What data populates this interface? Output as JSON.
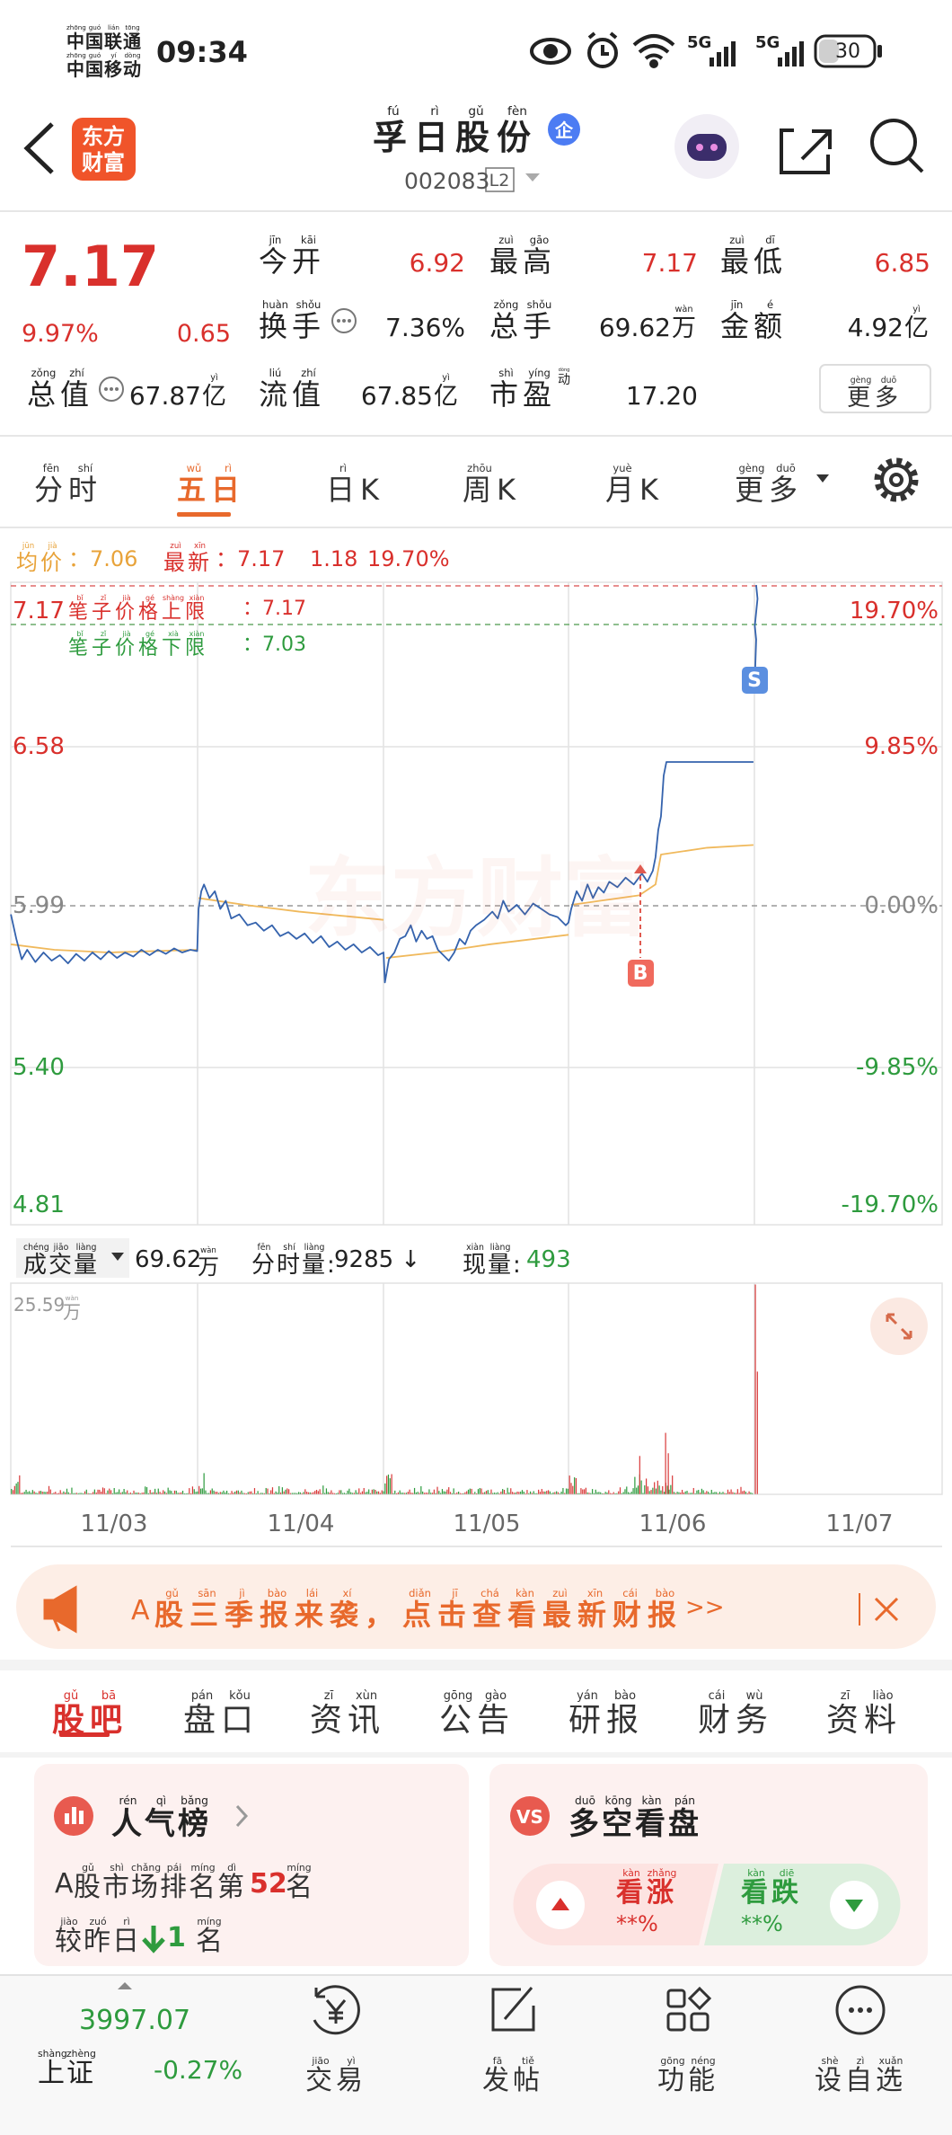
{
  "status_bar": {
    "carrier_top": {
      "text": "中国联通",
      "pinyin": [
        "zhōng",
        "guó",
        "lián",
        "tōng"
      ]
    },
    "carrier_bottom": {
      "text": "中国移动",
      "pinyin": [
        "zhōng",
        "guó",
        "yí",
        "dòng"
      ]
    },
    "time": "09:34",
    "signal_1": "5G",
    "signal_2": "5G",
    "battery": "30"
  },
  "header": {
    "logo_top": "东方",
    "logo_bottom": "财富",
    "title": {
      "text": "孚日股份",
      "pinyin": [
        "fú",
        "rì",
        "gǔ",
        "fèn"
      ]
    },
    "badge": "企",
    "code": "002083",
    "level": "L2"
  },
  "quote": {
    "price": "7.17",
    "change_percent": "9.97%",
    "change": "0.65",
    "fields": [
      {
        "label": {
          "text": "今开",
          "pinyin": [
            "jīn",
            "kāi"
          ]
        },
        "value": "6.92"
      },
      {
        "label": {
          "text": "最高",
          "pinyin": [
            "zuì",
            "gāo"
          ]
        },
        "value": "7.17"
      },
      {
        "label": {
          "text": "最低",
          "pinyin": [
            "zuì",
            "dī"
          ]
        },
        "value": "6.85"
      },
      {
        "label": {
          "text": "换手",
          "pinyin": [
            "huàn",
            "shǒu"
          ]
        },
        "value": "7.36%"
      },
      {
        "label": {
          "text": "总手",
          "pinyin": [
            "zǒng",
            "shǒu"
          ]
        },
        "value": "69.62",
        "unit": {
          "text": "万",
          "pinyin": [
            "wàn"
          ]
        }
      },
      {
        "label": {
          "text": "金额",
          "pinyin": [
            "jīn",
            "é"
          ]
        },
        "value": "4.92",
        "unit": {
          "text": "亿",
          "pinyin": [
            "yì"
          ]
        }
      },
      {
        "label": {
          "text": "总值",
          "pinyin": [
            "zǒng",
            "zhí"
          ]
        },
        "value": "67.87",
        "unit": {
          "text": "亿",
          "pinyin": [
            "yì"
          ]
        }
      },
      {
        "label": {
          "text": "流值",
          "pinyin": [
            "liú",
            "zhí"
          ]
        },
        "value": "67.85",
        "unit": {
          "text": "亿",
          "pinyin": [
            "yì"
          ]
        }
      },
      {
        "label": {
          "text": "市盈",
          "pinyin": [
            "shì",
            "yíng"
          ]
        },
        "tag": {
          "text": "动",
          "pinyin": [
            "dòng"
          ]
        },
        "value": "17.20"
      }
    ],
    "more": {
      "text": "更多",
      "pinyin": [
        "gèng",
        "duō"
      ]
    }
  },
  "chart_tabs": [
    {
      "text": "分时",
      "pinyin": [
        "fēn",
        "shí"
      ]
    },
    {
      "text": "五日",
      "pinyin": [
        "wǔ",
        "rì"
      ]
    },
    {
      "text": "日K",
      "pinyin": [
        "rì"
      ]
    },
    {
      "text": "周K",
      "pinyin": [
        "zhōu"
      ]
    },
    {
      "text": "月K",
      "pinyin": [
        "yuè"
      ]
    },
    {
      "text": "更多",
      "pinyin": [
        "gèng",
        "duō"
      ]
    }
  ],
  "active_chart_tab": 1,
  "legend": {
    "avg_label": {
      "text": "均价",
      "pinyin": [
        "jūn",
        "jià"
      ]
    },
    "avg_value": "：7.06",
    "latest_label": {
      "text": "最新",
      "pinyin": [
        "zuì",
        "xīn"
      ]
    },
    "latest_value": "：7.17",
    "latest_change": "1.18",
    "latest_percent": "19.70%"
  },
  "price_chart": {
    "left_labels": [
      "7.17",
      "6.58",
      "5.99",
      "5.40",
      "4.81"
    ],
    "right_labels": [
      "19.70%",
      "9.85%",
      "0.00%",
      "-9.85%",
      "-19.70%"
    ],
    "upper_limit": {
      "label": {
        "text": "笔子价格上限",
        "pinyin": [
          "bǐ",
          "zǐ",
          "jià",
          "gé",
          "shàng",
          "xiàn"
        ]
      },
      "value": "：7.17"
    },
    "lower_limit": {
      "label": {
        "text": "笔子价格下限",
        "pinyin": [
          "bǐ",
          "zǐ",
          "jià",
          "gé",
          "xià",
          "xiàn"
        ]
      },
      "value": "：7.03"
    },
    "watermark": "东方财富",
    "buy_marker": "B",
    "sell_marker": "S"
  },
  "volume": {
    "label": {
      "text": "成交量",
      "pinyin": [
        "chéng",
        "jiāo",
        "liàng"
      ]
    },
    "total": "69.62",
    "total_unit": {
      "text": "万",
      "pinyin": [
        "wàn"
      ]
    },
    "tick_label": {
      "text": "分时量:",
      "pinyin": [
        "fēn",
        "shí",
        "liàng"
      ]
    },
    "tick_value": "9285 ↓",
    "current_label": {
      "text": "现量:",
      "pinyin": [
        "xiàn",
        "liàng"
      ]
    },
    "current_value": "493",
    "scale_max": "25.59",
    "scale_unit": {
      "text": "万",
      "pinyin": [
        "wàn"
      ]
    }
  },
  "dates": [
    "11/03",
    "11/04",
    "11/05",
    "11/06",
    "11/07"
  ],
  "banner": {
    "prefix": "A",
    "part1": {
      "text": "股三季报来袭，",
      "pinyin": [
        "gǔ",
        "sān",
        "jì",
        "bào",
        "lái",
        "xí"
      ]
    },
    "part2": {
      "text": "点击查看最新财报",
      "pinyin": [
        "diǎn",
        "jī",
        "chá",
        "kàn",
        "zuì",
        "xīn",
        "cái",
        "bào"
      ]
    },
    "suffix": ">>"
  },
  "info_tabs": [
    {
      "text": "股吧",
      "pinyin": [
        "gǔ",
        "bā"
      ]
    },
    {
      "text": "盘口",
      "pinyin": [
        "pán",
        "kǒu"
      ]
    },
    {
      "text": "资讯",
      "pinyin": [
        "zī",
        "xùn"
      ]
    },
    {
      "text": "公告",
      "pinyin": [
        "gōng",
        "gào"
      ]
    },
    {
      "text": "研报",
      "pinyin": [
        "yán",
        "bào"
      ]
    },
    {
      "text": "财务",
      "pinyin": [
        "cái",
        "wù"
      ]
    },
    {
      "text": "资料",
      "pinyin": [
        "zī",
        "liào"
      ]
    }
  ],
  "active_info_tab": 0,
  "popularity_card": {
    "title": {
      "text": "人气榜",
      "pinyin": [
        "rén",
        "qì",
        "bǎng"
      ]
    },
    "rank_prefix": "A",
    "rank_label": {
      "text": "股市场排名第",
      "pinyin": [
        "gǔ",
        "shì",
        "chǎng",
        "pái",
        "míng",
        "dì"
      ]
    },
    "rank": "52",
    "rank_unit": {
      "text": "名",
      "pinyin": [
        "míng"
      ]
    },
    "change_label": {
      "text": "较昨日",
      "pinyin": [
        "jiào",
        "zuó",
        "rì"
      ]
    },
    "change": "1",
    "change_unit": {
      "text": "名",
      "pinyin": [
        "míng"
      ]
    }
  },
  "sentiment_card": {
    "icon": "VS",
    "title": {
      "text": "多空看盘",
      "pinyin": [
        "duō",
        "kōng",
        "kàn",
        "pán"
      ]
    },
    "bull": {
      "text": "看涨",
      "pinyin": [
        "kàn",
        "zhǎng"
      ]
    },
    "bull_value": "**%",
    "bear": {
      "text": "看跌",
      "pinyin": [
        "kàn",
        "diē"
      ]
    },
    "bear_value": "**%"
  },
  "bottom_nav": {
    "index_value": "3997.07",
    "index_name": {
      "text": "上证",
      "pinyin": [
        "shàng",
        "zhèng"
      ]
    },
    "index_change": "-0.27%",
    "items": [
      {
        "text": "交易",
        "pinyin": [
          "jiāo",
          "yì"
        ]
      },
      {
        "text": "发帖",
        "pinyin": [
          "fā",
          "tiě"
        ]
      },
      {
        "text": "功能",
        "pinyin": [
          "gōng",
          "néng"
        ]
      },
      {
        "text": "设自选",
        "pinyin": [
          "shè",
          "zì",
          "xuǎn"
        ]
      }
    ]
  }
}
